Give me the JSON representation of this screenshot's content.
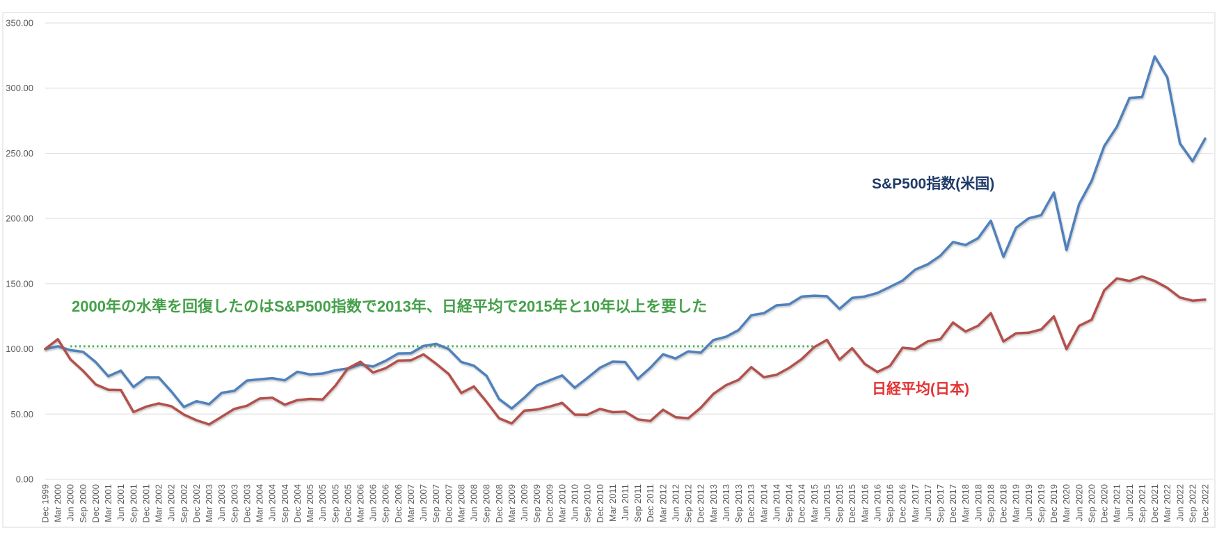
{
  "chart_data": {
    "type": "line",
    "title": "",
    "xlabel": "",
    "ylabel": "",
    "ylim": [
      0,
      350
    ],
    "grid": true,
    "legend_position": "inline-labels",
    "ytick_labels": [
      "350.00",
      "300.00",
      "250.00",
      "200.00",
      "150.00",
      "100.00",
      "50.00",
      "0.00"
    ],
    "categories": [
      "Dec 1999",
      "Mar 2000",
      "Jun 2000",
      "Sep 2000",
      "Dec 2000",
      "Mar 2001",
      "Jun 2001",
      "Sep 2001",
      "Dec 2001",
      "Mar 2002",
      "Jun 2002",
      "Sep 2002",
      "Dec 2002",
      "Mar 2003",
      "Jun 2003",
      "Sep 2003",
      "Dec 2003",
      "Mar 2004",
      "Jun 2004",
      "Sep 2004",
      "Dec 2004",
      "Mar 2005",
      "Jun 2005",
      "Sep 2005",
      "Dec 2005",
      "Mar 2006",
      "Jun 2006",
      "Sep 2006",
      "Dec 2006",
      "Mar 2007",
      "Jun 2007",
      "Sep 2007",
      "Dec 2007",
      "Mar 2008",
      "Jun 2008",
      "Sep 2008",
      "Dec 2008",
      "Mar 2009",
      "Jun 2009",
      "Sep 2009",
      "Dec 2009",
      "Mar 2010",
      "Jun 2010",
      "Sep 2010",
      "Dec 2010",
      "Mar 2011",
      "Jun 2011",
      "Sep 2011",
      "Dec 2011",
      "Mar 2012",
      "Jun 2012",
      "Sep 2012",
      "Dec 2012",
      "Mar 2013",
      "Jun 2013",
      "Sep 2013",
      "Dec 2013",
      "Mar 2014",
      "Jun 2014",
      "Sep 2014",
      "Dec 2014",
      "Mar 2015",
      "Jun 2015",
      "Sep 2015",
      "Dec 2015",
      "Mar 2016",
      "Jun 2016",
      "Sep 2016",
      "Dec 2016",
      "Mar 2017",
      "Jun 2017",
      "Sep 2017",
      "Dec 2017",
      "Mar 2018",
      "Jun 2018",
      "Sep 2018",
      "Dec 2018",
      "Mar 2019",
      "Jun 2019",
      "Sep 2019",
      "Dec 2019",
      "Mar 2020",
      "Jun 2020",
      "Sep 2020",
      "Dec 2020",
      "Mar 2021",
      "Jun 2021",
      "Sep 2021",
      "Dec 2021",
      "Mar 2022",
      "Jun 2022",
      "Sep 2022",
      "Dec 2022"
    ],
    "series": [
      {
        "name": "S&P500指数(米国)",
        "line_color": "#4f81bd",
        "label_color": "#1f3a68",
        "values": [
          100.0,
          102.0,
          99.0,
          97.8,
          89.9,
          79.0,
          83.3,
          70.8,
          78.1,
          78.1,
          67.4,
          55.5,
          59.9,
          57.7,
          66.3,
          67.8,
          75.7,
          76.7,
          77.6,
          75.9,
          82.5,
          80.4,
          81.1,
          83.6,
          85.0,
          88.1,
          86.5,
          90.9,
          96.5,
          96.7,
          102.3,
          103.9,
          99.9,
          90.0,
          87.1,
          79.4,
          61.5,
          54.3,
          62.6,
          72.0,
          75.9,
          79.6,
          70.2,
          77.7,
          85.6,
          90.2,
          89.9,
          77.0,
          85.6,
          95.9,
          92.7,
          98.1,
          97.1,
          106.8,
          109.3,
          114.5,
          125.8,
          127.4,
          133.4,
          134.2,
          140.1,
          140.8,
          140.4,
          130.7,
          139.1,
          140.2,
          142.9,
          147.6,
          152.4,
          160.8,
          164.9,
          171.5,
          182.0,
          179.7,
          185.0,
          198.3,
          170.6,
          192.9,
          200.2,
          202.6,
          219.9,
          175.9,
          211.0,
          228.9,
          255.6,
          270.4,
          292.5,
          293.2,
          324.4,
          308.3,
          257.6,
          244.0,
          261.3
        ]
      },
      {
        "name": "日経平均(日本)",
        "line_color": "#b4504b",
        "label_color": "#e53232",
        "values": [
          100.0,
          107.4,
          92.0,
          83.2,
          72.8,
          68.7,
          68.5,
          51.6,
          55.7,
          58.2,
          56.1,
          49.6,
          45.3,
          42.1,
          48.0,
          54.0,
          56.4,
          61.9,
          62.6,
          57.2,
          60.7,
          61.6,
          61.2,
          71.7,
          85.1,
          90.1,
          81.9,
          85.2,
          91.0,
          91.3,
          95.8,
          88.7,
          80.8,
          66.2,
          71.2,
          59.5,
          46.8,
          42.8,
          52.6,
          53.5,
          55.7,
          58.6,
          49.6,
          49.5,
          54.0,
          51.5,
          51.8,
          46.0,
          44.7,
          53.3,
          47.6,
          46.8,
          54.9,
          65.5,
          72.2,
          76.3,
          86.0,
          78.3,
          80.1,
          85.4,
          92.2,
          101.4,
          106.9,
          91.8,
          100.5,
          88.5,
          82.3,
          86.9,
          100.9,
          99.9,
          105.8,
          107.5,
          120.2,
          113.3,
          117.8,
          127.4,
          105.7,
          112.0,
          112.4,
          114.9,
          124.9,
          99.9,
          117.7,
          122.4,
          144.9,
          154.1,
          152.1,
          155.6,
          152.1,
          146.9,
          139.4,
          137.0,
          137.8
        ]
      }
    ],
    "baseline": {
      "value": 102,
      "style": "dotted",
      "color": "#4caf50",
      "from": "Jun 2000",
      "to": "Mar 2015"
    },
    "annotation": {
      "text": "2000年の水準を回復したのはS&P500指数で2013年、日経平均で2015年と10年以上を要した",
      "color": "#45a049"
    },
    "colors": {
      "grid": "#e3e3e3",
      "chart_border": "#d9d9d9",
      "tick_text": "#595959"
    }
  }
}
